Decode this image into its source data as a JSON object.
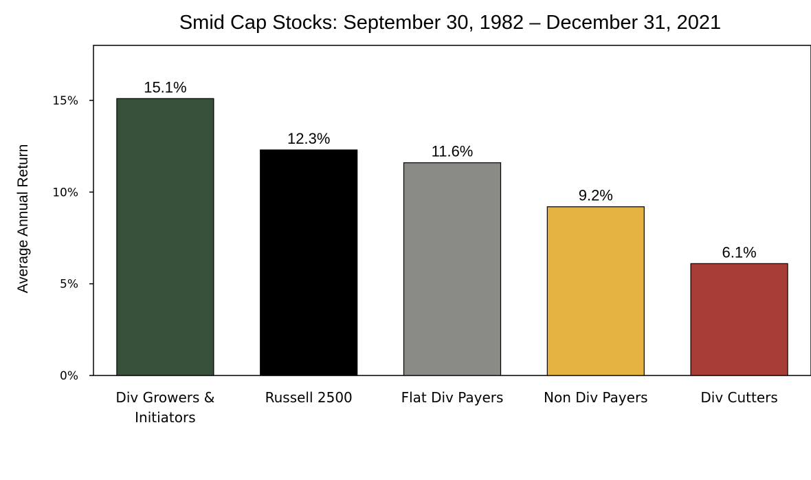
{
  "chart_data": {
    "type": "bar",
    "title": "Smid Cap Stocks:  September 30, 1982 – December 31, 2021",
    "xlabel": "",
    "ylabel": "Average Annual Return",
    "ylim": [
      0,
      18
    ],
    "yticks": [
      0,
      5,
      10,
      15
    ],
    "ytick_labels": [
      "0%",
      "5%",
      "10%",
      "15%"
    ],
    "grid": false,
    "legend": "none",
    "categories": [
      [
        "Div Growers &",
        "Initiators"
      ],
      [
        "Russell 2500"
      ],
      [
        "Flat Div Payers"
      ],
      [
        "Non Div Payers"
      ],
      [
        "Div Cutters"
      ]
    ],
    "values": [
      15.1,
      12.3,
      11.6,
      9.2,
      6.1
    ],
    "value_labels": [
      "15.1%",
      "12.3%",
      "11.6%",
      "9.2%",
      "6.1%"
    ],
    "colors": [
      "#36503a",
      "#000000",
      "#8a8b85",
      "#e3b240",
      "#a83c36"
    ]
  }
}
